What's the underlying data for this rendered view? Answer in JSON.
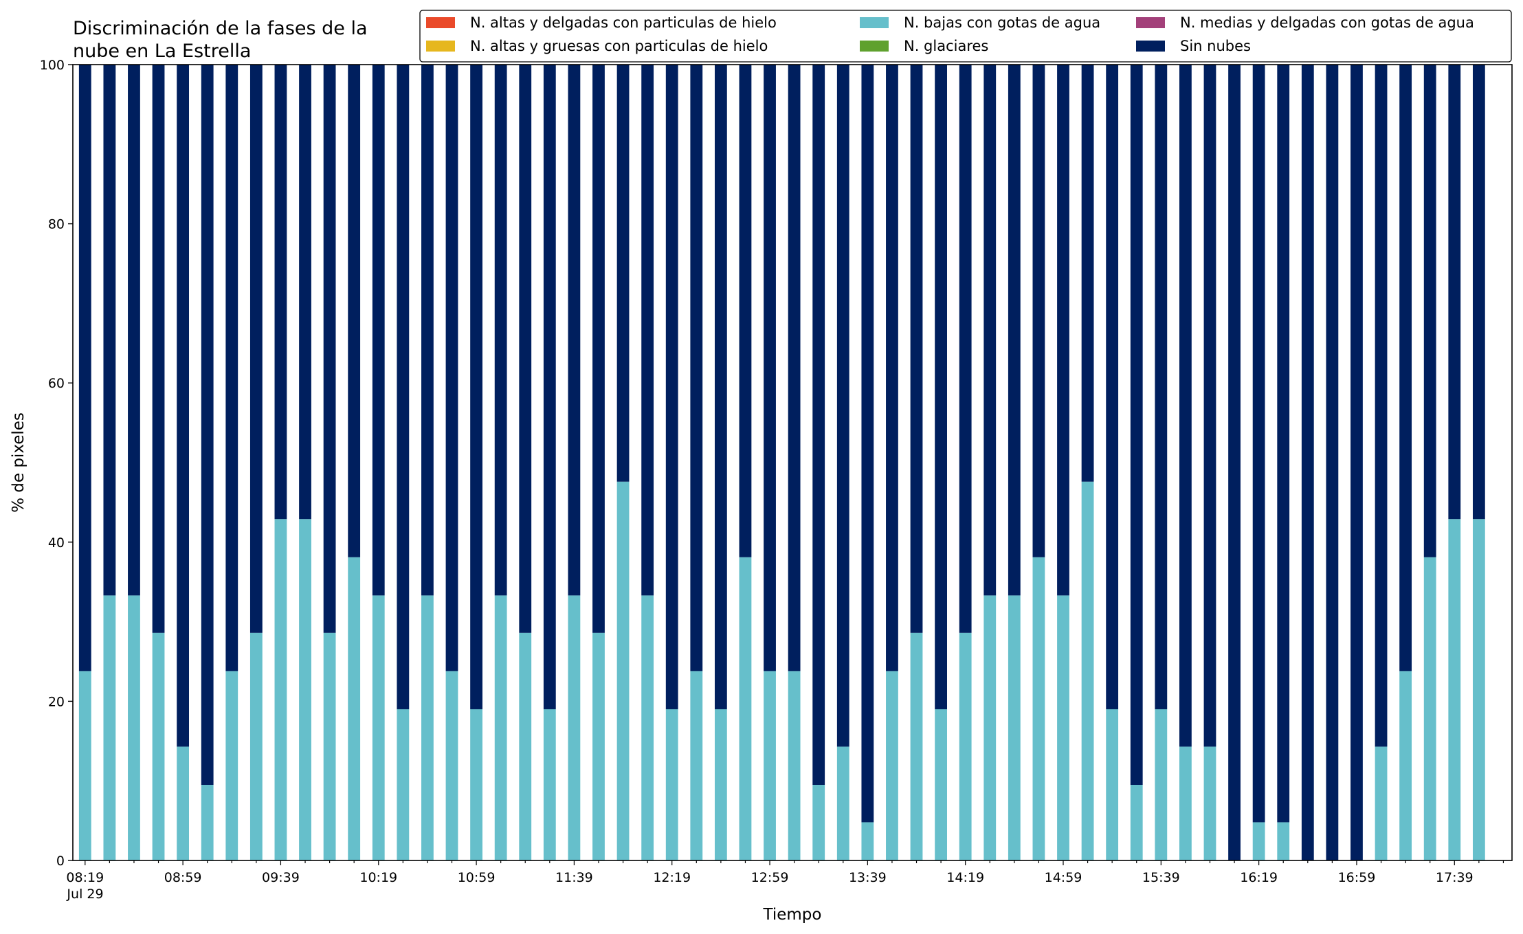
{
  "chart_data": {
    "type": "bar",
    "stacked": true,
    "title_lines": [
      "Discriminación de la fases de la",
      "nube en La Estrella"
    ],
    "xlabel": "Tiempo",
    "ylabel": "% de pixeles",
    "ylim": [
      0,
      100
    ],
    "yticks": [
      0,
      20,
      40,
      60,
      80,
      100
    ],
    "x_tick_labels": [
      "08:19",
      "08:59",
      "09:39",
      "10:19",
      "10:59",
      "11:39",
      "12:19",
      "12:59",
      "13:39",
      "14:19",
      "14:59",
      "15:39",
      "16:19",
      "16:59",
      "17:39"
    ],
    "x_date_label": "Jul 29",
    "x_start": "08:19",
    "x_interval_minutes": 10,
    "grid": false,
    "legend_position": "top-right",
    "legend_columns": 3,
    "series": [
      {
        "name": "N. altas y delgadas con particulas de hielo",
        "color": "#ea4a2a",
        "values": [
          0,
          0,
          0,
          0,
          0,
          0,
          0,
          0,
          0,
          0,
          0,
          0,
          0,
          0,
          0,
          0,
          0,
          0,
          0,
          0,
          0,
          0,
          0,
          0,
          0,
          0,
          0,
          0,
          0,
          0,
          0,
          0,
          0,
          0,
          0,
          0,
          0,
          0,
          0,
          0,
          0,
          0,
          0,
          0,
          0,
          0,
          0,
          0,
          0,
          0,
          0,
          0,
          0,
          0,
          0,
          0,
          0,
          0
        ]
      },
      {
        "name": "N. altas y gruesas con particulas de hielo",
        "color": "#e6b71e",
        "values": [
          0,
          0,
          0,
          0,
          0,
          0,
          0,
          0,
          0,
          0,
          0,
          0,
          0,
          0,
          0,
          0,
          0,
          0,
          0,
          0,
          0,
          0,
          0,
          0,
          0,
          0,
          0,
          0,
          0,
          0,
          0,
          0,
          0,
          0,
          0,
          0,
          0,
          0,
          0,
          0,
          0,
          0,
          0,
          0,
          0,
          0,
          0,
          0,
          0,
          0,
          0,
          0,
          0,
          0,
          0,
          0,
          0,
          0
        ]
      },
      {
        "name": "N. bajas con gotas de agua",
        "color": "#66bfcb",
        "values": [
          23.8,
          33.3,
          33.3,
          28.6,
          14.3,
          9.5,
          23.8,
          28.6,
          42.9,
          42.9,
          28.6,
          38.1,
          33.3,
          19.0,
          33.3,
          23.8,
          19.0,
          33.3,
          28.6,
          19.0,
          33.3,
          28.6,
          47.6,
          33.3,
          19.0,
          23.8,
          19.0,
          38.1,
          23.8,
          23.8,
          9.5,
          14.3,
          4.8,
          23.8,
          28.6,
          19.0,
          28.6,
          33.3,
          33.3,
          38.1,
          33.3,
          47.6,
          19.0,
          9.5,
          19.0,
          14.3,
          14.3,
          0,
          4.8,
          4.8,
          0,
          0,
          0,
          14.3,
          23.8,
          38.1,
          42.9,
          42.9
        ]
      },
      {
        "name": "N. glaciares",
        "color": "#5fa12e",
        "values": [
          0,
          0,
          0,
          0,
          0,
          0,
          0,
          0,
          0,
          0,
          0,
          0,
          0,
          0,
          0,
          0,
          0,
          0,
          0,
          0,
          0,
          0,
          0,
          0,
          0,
          0,
          0,
          0,
          0,
          0,
          0,
          0,
          0,
          0,
          0,
          0,
          0,
          0,
          0,
          0,
          0,
          0,
          0,
          0,
          0,
          0,
          0,
          0,
          0,
          0,
          0,
          0,
          0,
          0,
          0,
          0,
          0,
          0
        ]
      },
      {
        "name": "N. medias y delgadas con gotas de agua",
        "color": "#a3407a",
        "values": [
          0,
          0,
          0,
          0,
          0,
          0,
          0,
          0,
          0,
          0,
          0,
          0,
          0,
          0,
          0,
          0,
          0,
          0,
          0,
          0,
          0,
          0,
          0,
          0,
          0,
          0,
          0,
          0,
          0,
          0,
          0,
          0,
          0,
          0,
          0,
          0,
          0,
          0,
          0,
          0,
          0,
          0,
          0,
          0,
          0,
          0,
          0,
          0,
          0,
          0,
          0,
          0,
          0,
          0,
          0,
          0,
          0,
          0
        ]
      },
      {
        "name": "Sin nubes",
        "color": "#001f5e",
        "values": [
          76.2,
          66.7,
          66.7,
          71.4,
          85.7,
          90.5,
          76.2,
          71.4,
          57.1,
          57.1,
          71.4,
          61.9,
          66.7,
          81.0,
          66.7,
          76.2,
          81.0,
          66.7,
          71.4,
          81.0,
          66.7,
          71.4,
          52.4,
          66.7,
          81.0,
          76.2,
          81.0,
          61.9,
          76.2,
          76.2,
          90.5,
          85.7,
          95.2,
          76.2,
          71.4,
          81.0,
          71.4,
          66.7,
          66.7,
          61.9,
          66.7,
          52.4,
          81.0,
          90.5,
          81.0,
          85.7,
          85.7,
          100,
          95.2,
          95.2,
          100,
          100,
          100,
          85.7,
          76.2,
          61.9,
          57.1,
          57.1
        ]
      }
    ]
  }
}
